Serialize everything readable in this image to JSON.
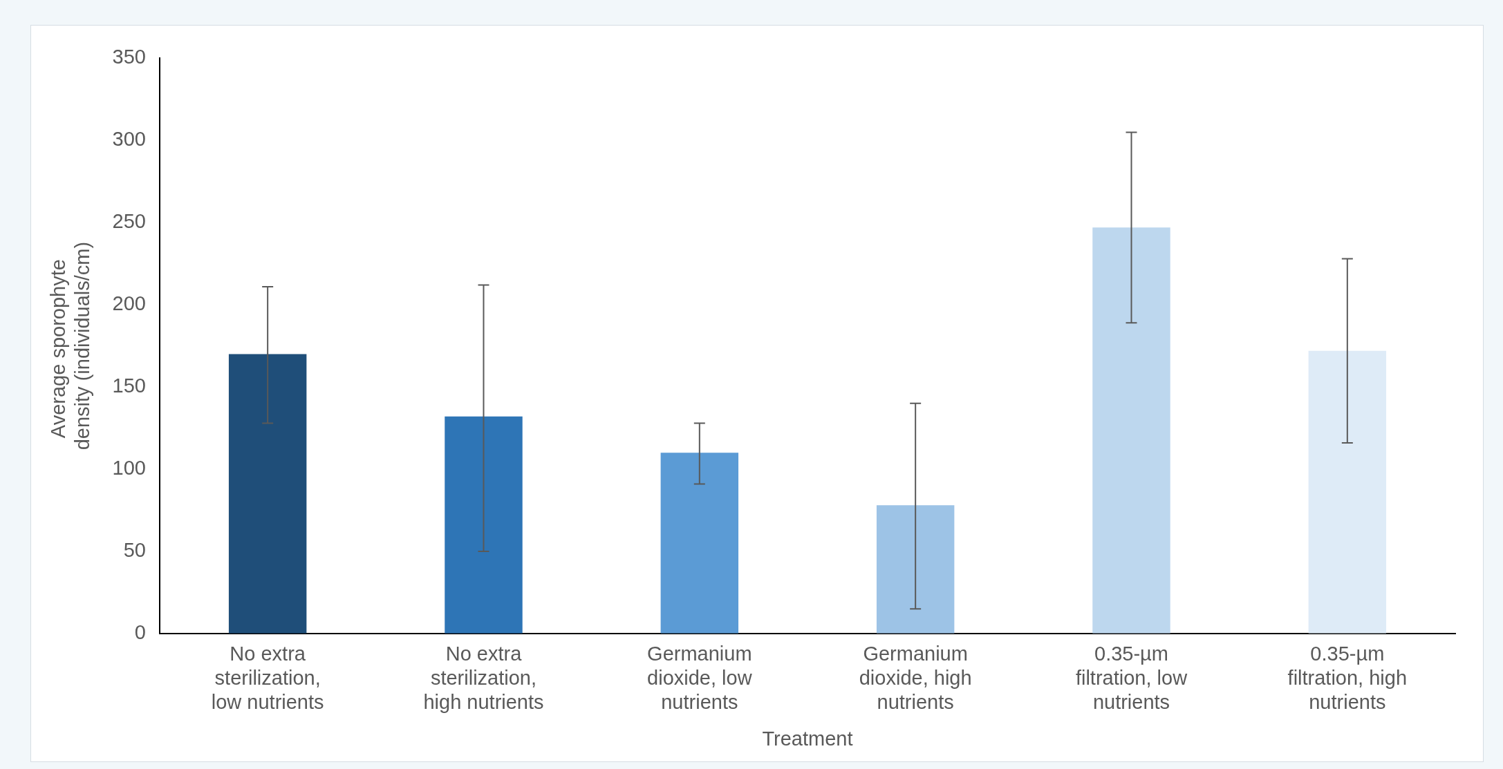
{
  "chart_data": {
    "type": "bar",
    "xlabel": "Treatment",
    "ylabel": "Average sporophyte  density (individuals/cm)",
    "categories": [
      "No extra sterilization, low nutrients",
      "No extra sterilization, high nutrients",
      "Germanium dioxide, low nutrients",
      "Germanium dioxide, high nutrients",
      "0.35-µm filtration, low nutrients",
      "0.35-µm filtration, high nutrients"
    ],
    "values": [
      170,
      132,
      110,
      78,
      247,
      172
    ],
    "colors": [
      "#1f4e79",
      "#2e75b6",
      "#5b9bd5",
      "#9dc3e6",
      "#bdd7ee",
      "#deebf7"
    ],
    "errors": [
      [
        128,
        211
      ],
      [
        50,
        212
      ],
      [
        91,
        128
      ],
      [
        15,
        140
      ],
      [
        189,
        305
      ],
      [
        116,
        228
      ]
    ],
    "ylim": [
      0,
      350
    ],
    "yticks": [
      0,
      50,
      100,
      150,
      200,
      250,
      300,
      350
    ],
    "grid": false,
    "legend": false
  }
}
